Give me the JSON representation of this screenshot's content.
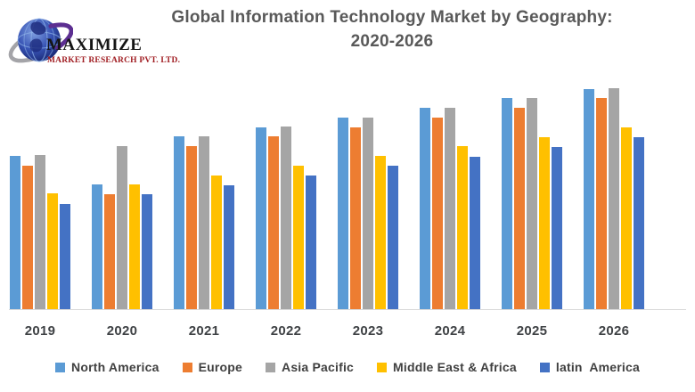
{
  "header": {
    "logo": {
      "name": "MAXIMIZE",
      "subtitle": "MARKET RESEARCH PVT. LTD.",
      "icon": "globe-swoosh-icon",
      "name_color": "#151515",
      "subtitle_color": "#a01d22"
    },
    "title_line1": "Global Information Technology Market by Geography:",
    "title_line2": "2020-2026",
    "title_color": "#595959"
  },
  "chart_data": {
    "type": "bar",
    "title": "Global Information Technology Market by Geography: 2020-2026",
    "xlabel": "",
    "ylabel": "",
    "categories": [
      "2019",
      "2020",
      "2021",
      "2022",
      "2023",
      "2024",
      "2025",
      "2026"
    ],
    "series": [
      {
        "name": "North America",
        "color": "#5B9BD5",
        "values": [
          172,
          140,
          194,
          204,
          215,
          226,
          237,
          247
        ]
      },
      {
        "name": "Europe",
        "color": "#ED7D31",
        "values": [
          161,
          129,
          183,
          194,
          204,
          215,
          226,
          237
        ]
      },
      {
        "name": "Asia Pacific",
        "color": "#A5A5A5",
        "values": [
          173,
          183,
          194,
          205,
          215,
          226,
          237,
          248
        ]
      },
      {
        "name": "Middle East & Africa",
        "color": "#FFC000",
        "values": [
          130,
          140,
          150,
          161,
          172,
          183,
          193,
          204
        ]
      },
      {
        "name": "latin  America",
        "color": "#4472C4",
        "values": [
          118,
          129,
          139,
          150,
          161,
          171,
          182,
          193
        ]
      }
    ],
    "ylim": [
      0,
      260
    ],
    "grid": false,
    "legend_position": "bottom",
    "axis": {
      "baseline_color": "#d9d9d9",
      "tick_label_color": "#3f4245"
    }
  }
}
